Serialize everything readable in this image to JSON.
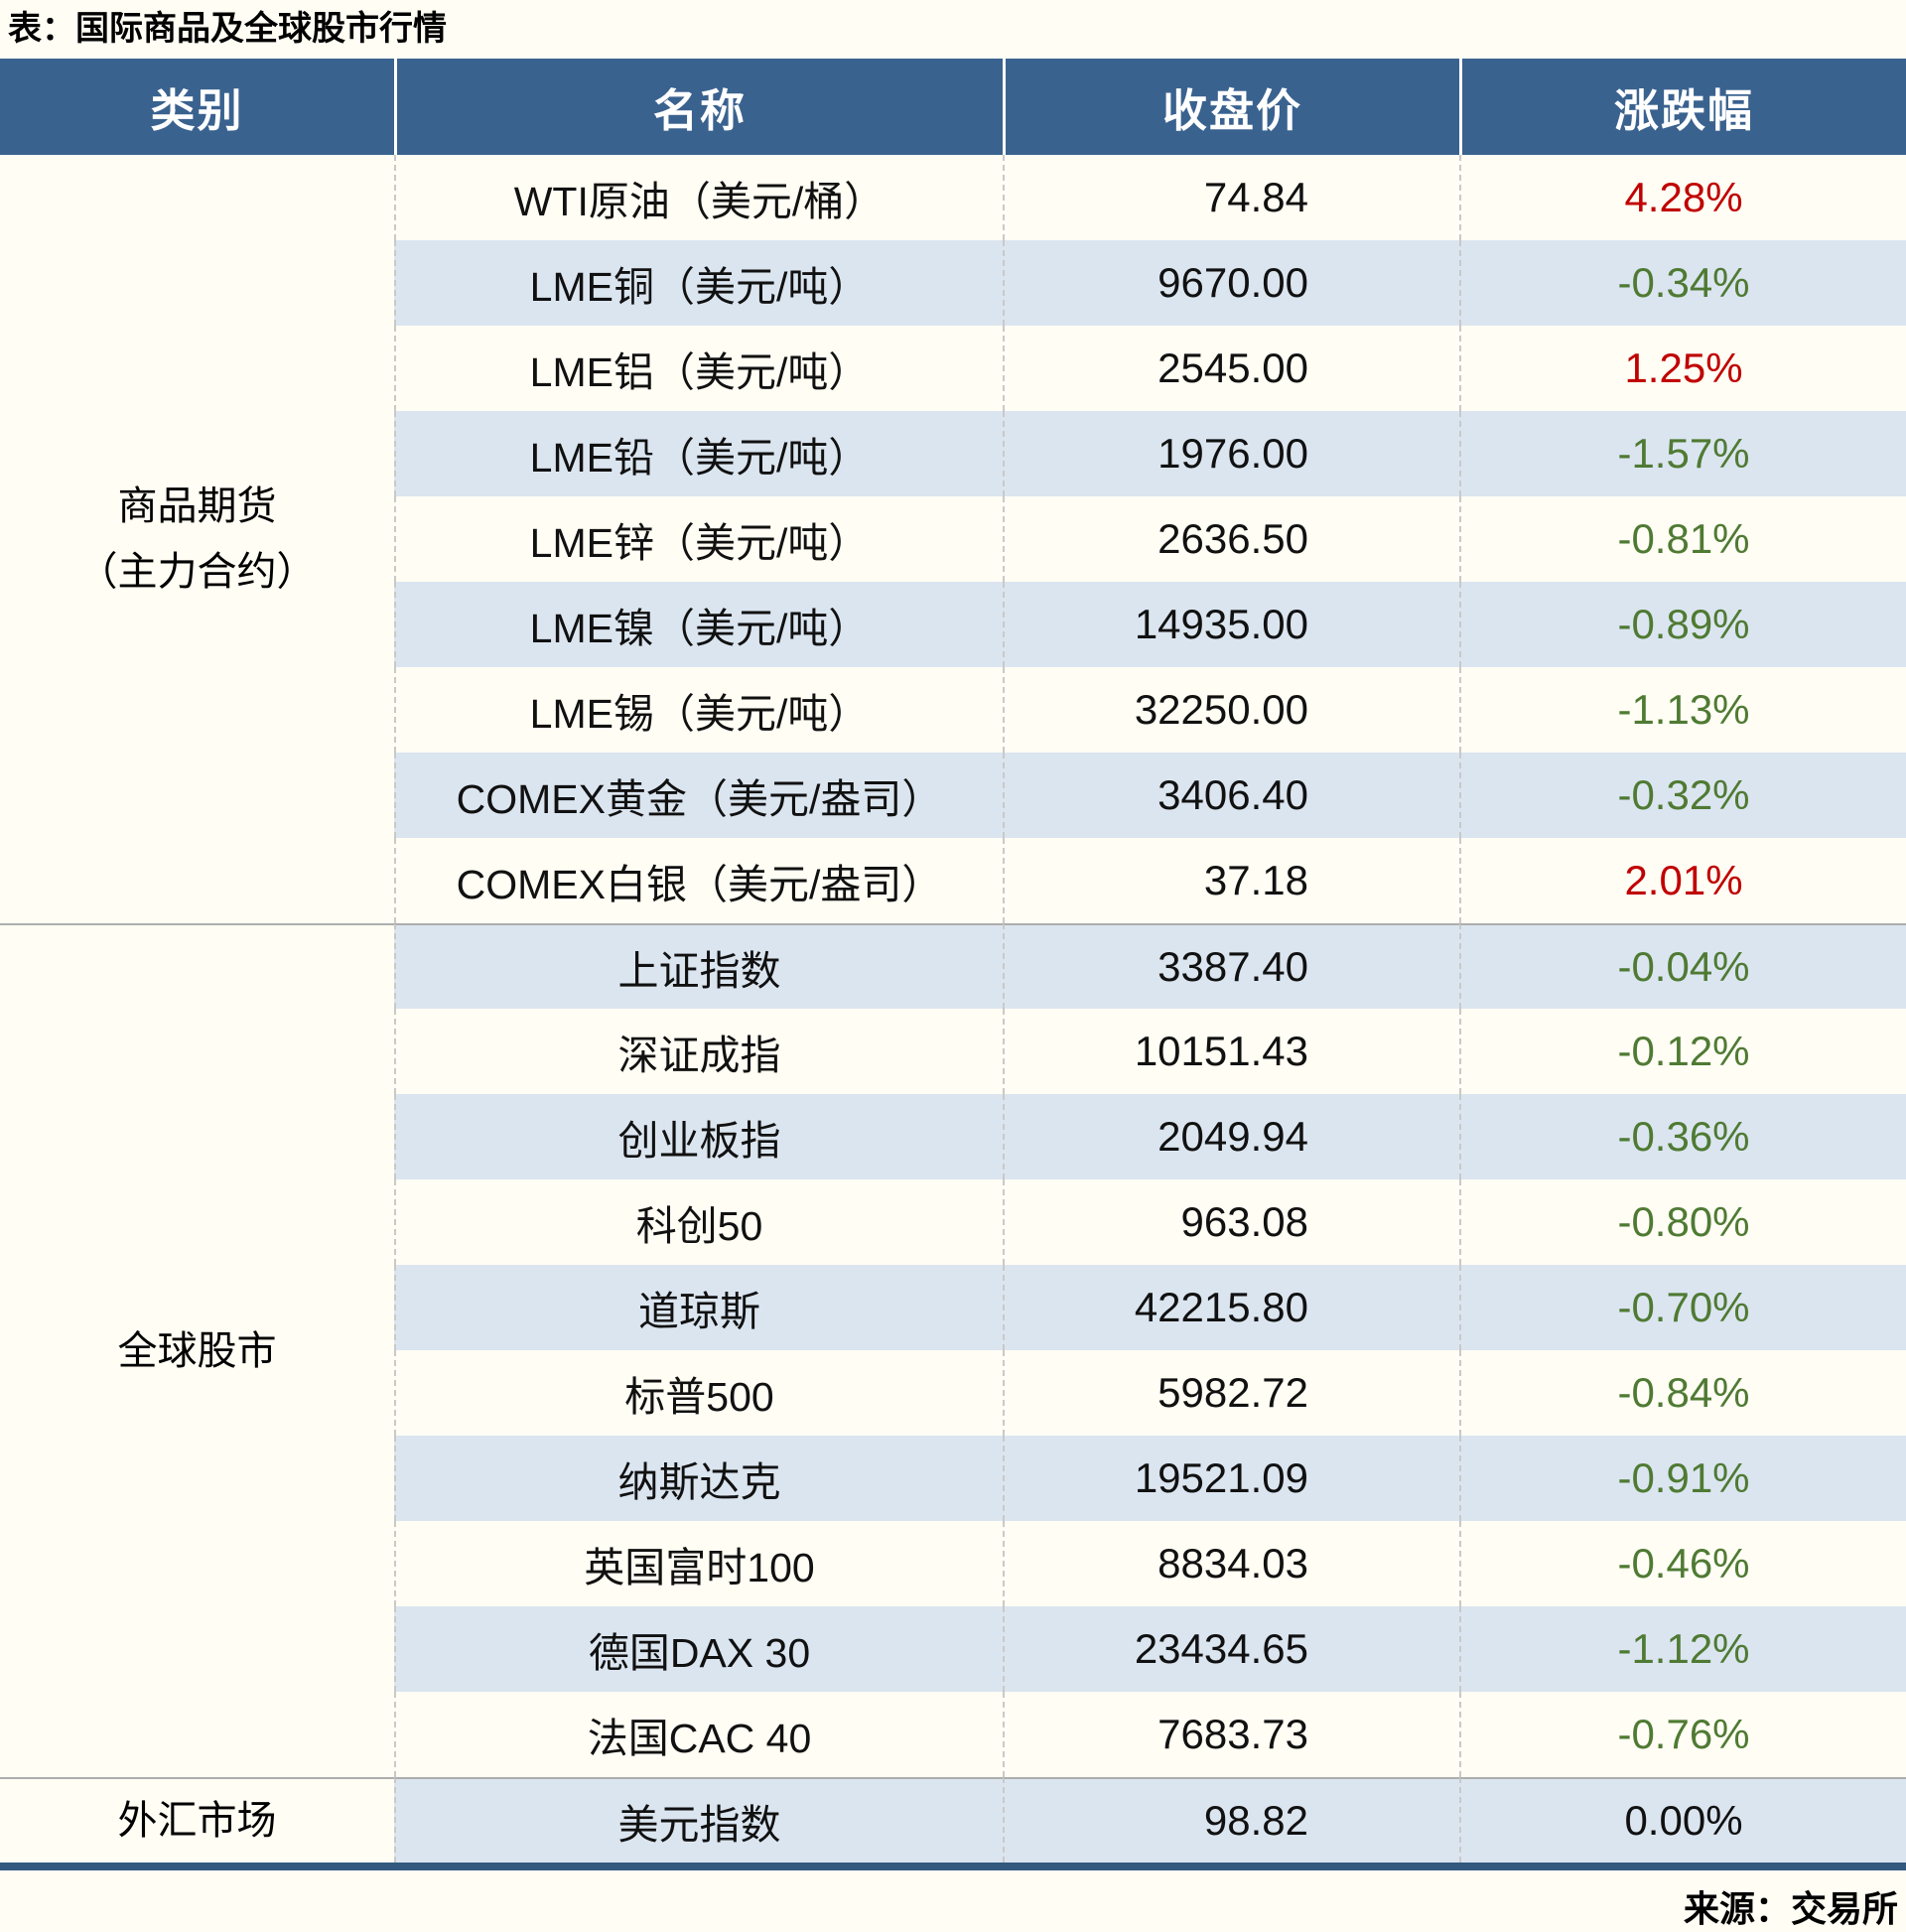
{
  "title": "表：国际商品及全球股市行情",
  "footer": {
    "source_label": "来源：交易所"
  },
  "chart_data": {
    "type": "table",
    "title": "表：国际商品及全球股市行情",
    "columns": [
      "类别",
      "名称",
      "收盘价",
      "涨跌幅"
    ],
    "legend_note": "红色=上涨, 绿色=下跌",
    "colors": {
      "up": "#C00000",
      "down": "#4F7A33",
      "flat": "#111111",
      "header_bg": "#3A628F",
      "stripe_bg": "#DBE5F0",
      "table_border": "#33597E"
    },
    "groups": [
      {
        "category_lines": [
          "商品期货",
          "（主力合约）"
        ],
        "rows": [
          {
            "name": "WTI原油（美元/桶）",
            "close": "74.84",
            "change": "4.28%",
            "direction": "up"
          },
          {
            "name": "LME铜（美元/吨）",
            "close": "9670.00",
            "change": "-0.34%",
            "direction": "down"
          },
          {
            "name": "LME铝（美元/吨）",
            "close": "2545.00",
            "change": "1.25%",
            "direction": "up"
          },
          {
            "name": "LME铅（美元/吨）",
            "close": "1976.00",
            "change": "-1.57%",
            "direction": "down"
          },
          {
            "name": "LME锌（美元/吨）",
            "close": "2636.50",
            "change": "-0.81%",
            "direction": "down"
          },
          {
            "name": "LME镍（美元/吨）",
            "close": "14935.00",
            "change": "-0.89%",
            "direction": "down"
          },
          {
            "name": "LME锡（美元/吨）",
            "close": "32250.00",
            "change": "-1.13%",
            "direction": "down"
          },
          {
            "name": "COMEX黄金（美元/盎司）",
            "close": "3406.40",
            "change": "-0.32%",
            "direction": "down"
          },
          {
            "name": "COMEX白银（美元/盎司）",
            "close": "37.18",
            "change": "2.01%",
            "direction": "up"
          }
        ]
      },
      {
        "category_lines": [
          "全球股市"
        ],
        "rows": [
          {
            "name": "上证指数",
            "close": "3387.40",
            "change": "-0.04%",
            "direction": "down"
          },
          {
            "name": "深证成指",
            "close": "10151.43",
            "change": "-0.12%",
            "direction": "down"
          },
          {
            "name": "创业板指",
            "close": "2049.94",
            "change": "-0.36%",
            "direction": "down"
          },
          {
            "name": "科创50",
            "close": "963.08",
            "change": "-0.80%",
            "direction": "down"
          },
          {
            "name": "道琼斯",
            "close": "42215.80",
            "change": "-0.70%",
            "direction": "down"
          },
          {
            "name": "标普500",
            "close": "5982.72",
            "change": "-0.84%",
            "direction": "down"
          },
          {
            "name": "纳斯达克",
            "close": "19521.09",
            "change": "-0.91%",
            "direction": "down"
          },
          {
            "name": "英国富时100",
            "close": "8834.03",
            "change": "-0.46%",
            "direction": "down"
          },
          {
            "name": "德国DAX 30",
            "close": "23434.65",
            "change": "-1.12%",
            "direction": "down"
          },
          {
            "name": "法国CAC 40",
            "close": "7683.73",
            "change": "-0.76%",
            "direction": "down"
          }
        ]
      },
      {
        "category_lines": [
          "外汇市场"
        ],
        "rows": [
          {
            "name": "美元指数",
            "close": "98.82",
            "change": "0.00%",
            "direction": "flat"
          }
        ]
      }
    ],
    "source_note": "来源：交易所"
  }
}
